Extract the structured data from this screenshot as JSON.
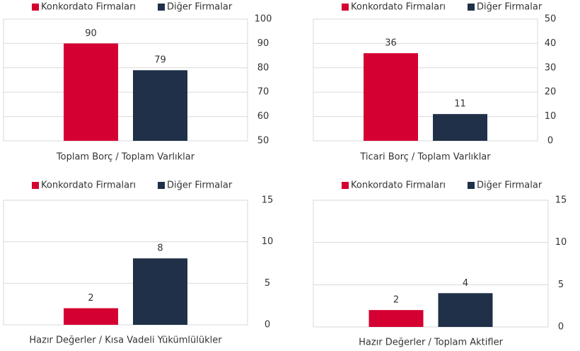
{
  "chart_data": [
    {
      "type": "bar",
      "categories": [
        "Toplam Borç / Toplam Varlıklar"
      ],
      "legend": "top",
      "series": [
        {
          "name": "Konkordato Firmaları",
          "color": "#d50032",
          "values": [
            90
          ]
        },
        {
          "name": "Diğer Firmalar",
          "color": "#1f3048",
          "values": [
            79
          ]
        }
      ],
      "ylim": [
        50,
        100
      ],
      "yticks": [
        50,
        60,
        70,
        80,
        90,
        100
      ],
      "grid": true
    },
    {
      "type": "bar",
      "categories": [
        "Ticari Borç / Toplam Varlıklar"
      ],
      "legend": "top",
      "series": [
        {
          "name": "Konkordato Firmaları",
          "color": "#d50032",
          "values": [
            36
          ]
        },
        {
          "name": "Diğer Firmalar",
          "color": "#1f3048",
          "values": [
            11
          ]
        }
      ],
      "ylim": [
        0,
        50
      ],
      "yticks": [
        0,
        10,
        20,
        30,
        40,
        50
      ],
      "grid": true
    },
    {
      "type": "bar",
      "categories": [
        "Hazır Değerler / Kısa Vadeli Yükümlülükler"
      ],
      "legend": "top",
      "series": [
        {
          "name": "Konkordato Firmaları",
          "color": "#d50032",
          "values": [
            2
          ]
        },
        {
          "name": "Diğer Firmalar",
          "color": "#1f3048",
          "values": [
            8
          ]
        }
      ],
      "ylim": [
        0,
        15
      ],
      "yticks": [
        0,
        5,
        10,
        15
      ],
      "grid": true
    },
    {
      "type": "bar",
      "categories": [
        "Hazır Değerler / Toplam Aktifler"
      ],
      "legend": "top",
      "series": [
        {
          "name": "Konkordato Firmaları",
          "color": "#d50032",
          "values": [
            2
          ]
        },
        {
          "name": "Diğer Firmalar",
          "color": "#1f3048",
          "values": [
            4
          ]
        }
      ],
      "ylim": [
        0,
        15
      ],
      "yticks": [
        0,
        5,
        10,
        15
      ],
      "grid": true
    }
  ]
}
